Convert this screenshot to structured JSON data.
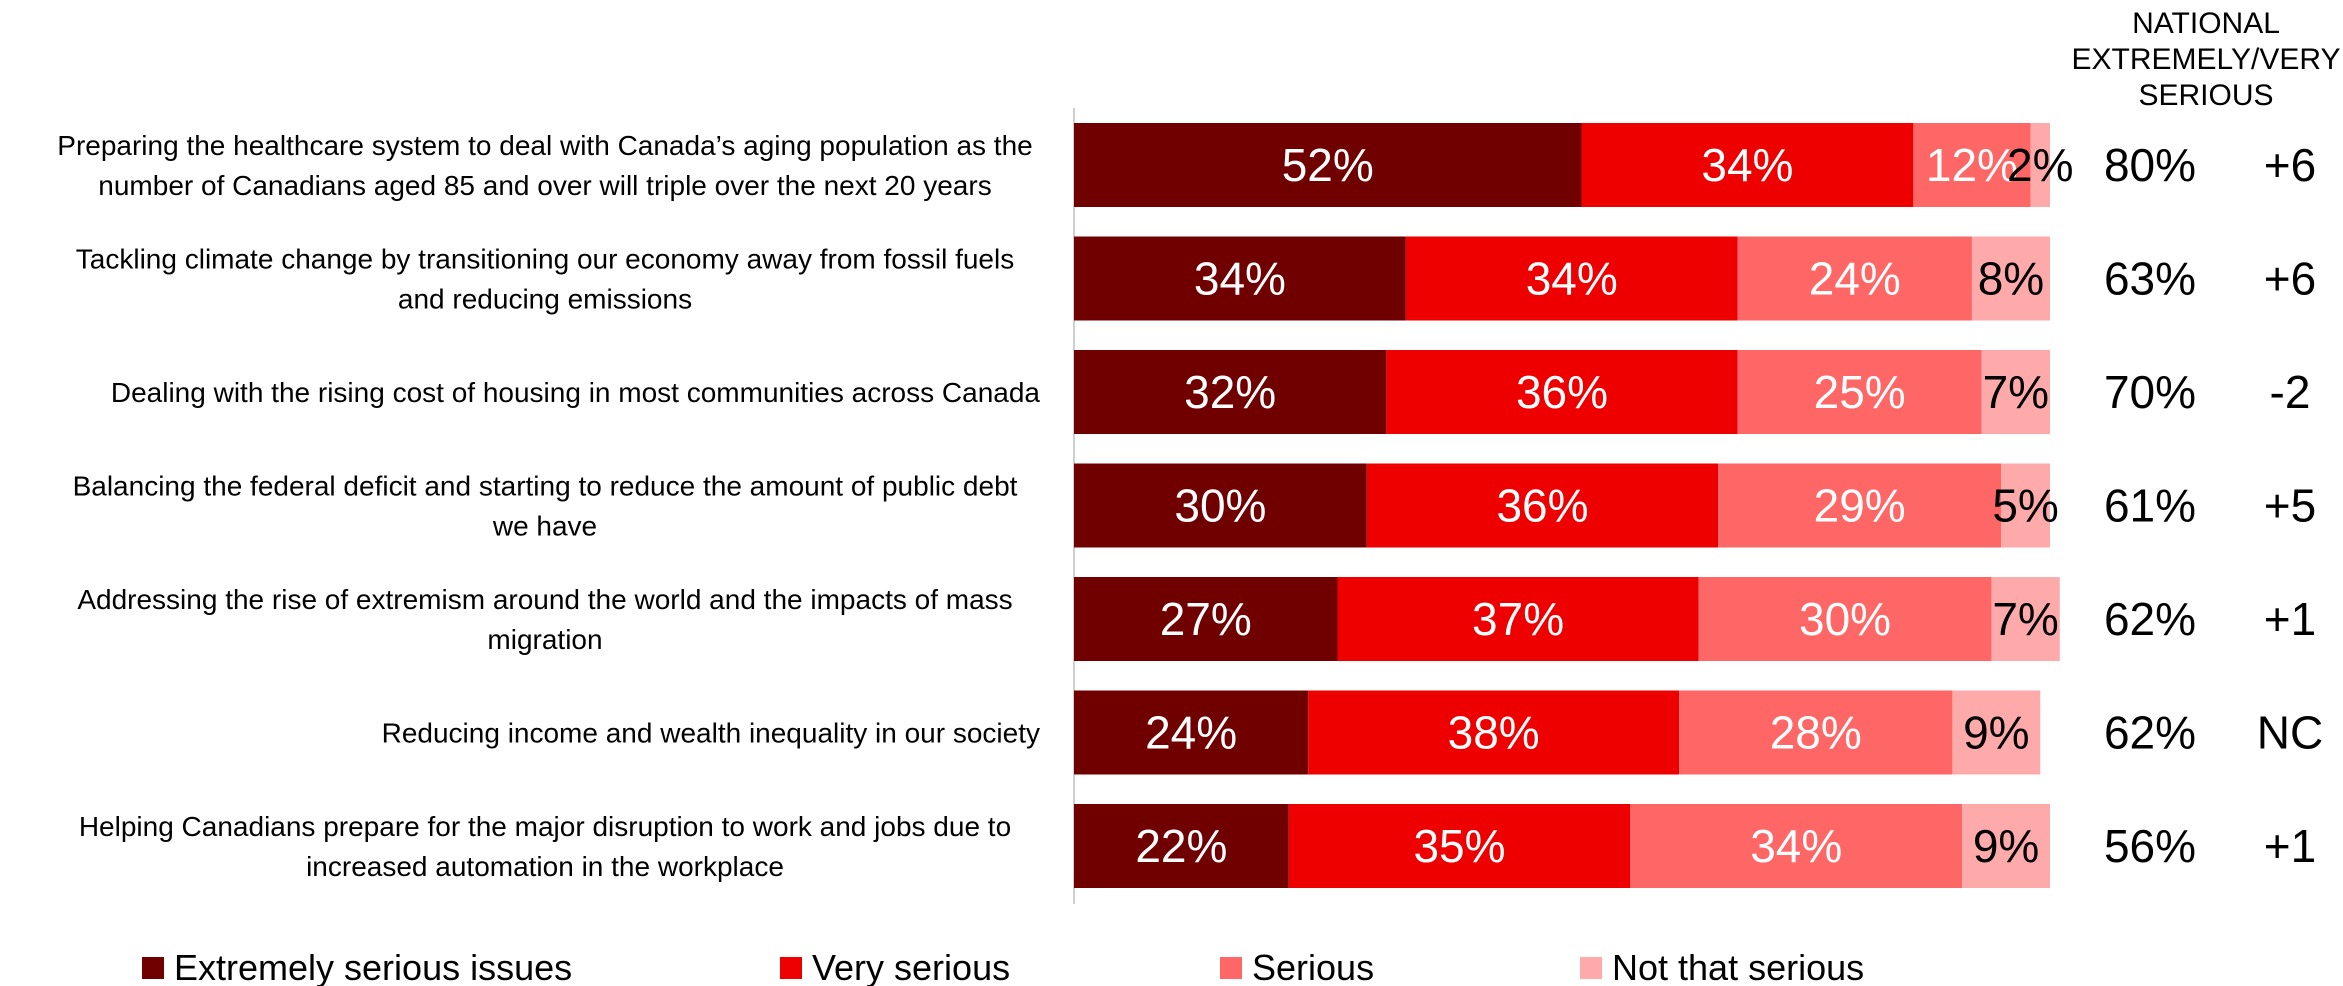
{
  "chart_data": {
    "type": "bar",
    "orientation": "horizontal-stacked",
    "header_lines": [
      "NATIONAL",
      "EXTREMELY/VERY",
      "SERIOUS"
    ],
    "categories": [
      [
        "Preparing the healthcare system to deal with Canada’s aging population as the",
        "number of Canadians aged 85 and over will triple over the next 20 years"
      ],
      [
        "Tackling climate change by transitioning our economy away from fossil fuels",
        "and reducing emissions"
      ],
      [
        "Dealing with the rising cost of housing in most communities across Canada"
      ],
      [
        "Balancing the federal deficit and starting to reduce the amount of public debt",
        "we have"
      ],
      [
        "Addressing the rise of extremism around the world and the impacts of mass",
        "migration"
      ],
      [
        "Reducing income and wealth inequality in our society"
      ],
      [
        "Helping Canadians prepare for the major disruption to work and jobs due to",
        "increased automation in the workplace"
      ]
    ],
    "series": [
      {
        "name": "Extremely serious issues",
        "color": "#700000",
        "values": [
          52,
          34,
          32,
          30,
          27,
          24,
          22
        ]
      },
      {
        "name": "Very serious",
        "color": "#ee0000",
        "values": [
          34,
          34,
          36,
          36,
          37,
          38,
          35
        ]
      },
      {
        "name": "Serious",
        "color": "#ff6666",
        "values": [
          12,
          24,
          25,
          29,
          30,
          28,
          34
        ]
      },
      {
        "name": "Not that serious",
        "color": "#ffaaaa",
        "values": [
          2,
          8,
          7,
          5,
          7,
          9,
          9
        ]
      }
    ],
    "national": [
      "80%",
      "63%",
      "70%",
      "61%",
      "62%",
      "62%",
      "56%"
    ],
    "change": [
      "+6",
      "+6",
      "-2",
      "+5",
      "+1",
      "NC",
      "+1"
    ],
    "xlim": [
      0,
      100
    ],
    "legend_position": "bottom"
  }
}
